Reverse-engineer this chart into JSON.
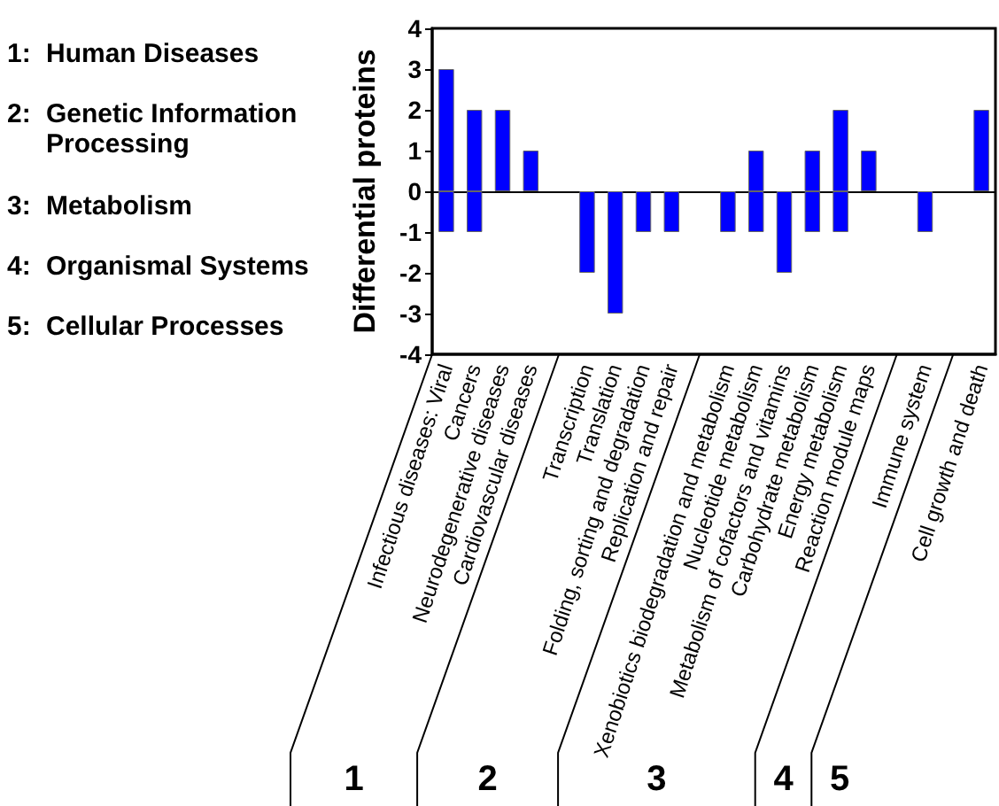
{
  "chart_data": {
    "type": "bar",
    "ylabel": "Differential proteins",
    "categories": [
      "Infectious diseases: Viral",
      "Cancers",
      "Neurodegenerative diseases",
      "Cardiovascular diseases",
      null,
      "Transcription",
      "Translation",
      "Folding, sorting and degradation",
      "Replication and repair",
      null,
      "Xenobiotics biodegradation and metabolism",
      "Nucleotide metabolism",
      "Metabolism of cofactors and vitamins",
      "Carbohydrate metabolism",
      "Energy metabolism",
      "Reaction module maps",
      null,
      "Immune system",
      null,
      "Cell growth and death"
    ],
    "series": [
      {
        "color": "#0000ff",
        "values": [
          3,
          2,
          2,
          1,
          null,
          null,
          null,
          null,
          null,
          null,
          null,
          1,
          null,
          1,
          2,
          1,
          null,
          null,
          null,
          2
        ]
      },
      {
        "color": "#0000ff",
        "values": [
          -1,
          -1,
          null,
          null,
          null,
          -2,
          -3,
          -1,
          -1,
          null,
          -1,
          -1,
          -2,
          -1,
          -1,
          null,
          null,
          -1,
          null,
          null
        ]
      }
    ],
    "stacked": true,
    "ylim": [
      -4,
      4
    ],
    "yticks": [
      -4,
      -3,
      -2,
      -1,
      0,
      1,
      2,
      3,
      4
    ],
    "annotations": [
      "1: Human Diseases",
      "2: Genetic Information Processing",
      "3: Metabolism",
      "4: Organismal Systems",
      "5: Cellular Processes",
      "1",
      "2",
      "3",
      "4",
      "5"
    ]
  }
}
